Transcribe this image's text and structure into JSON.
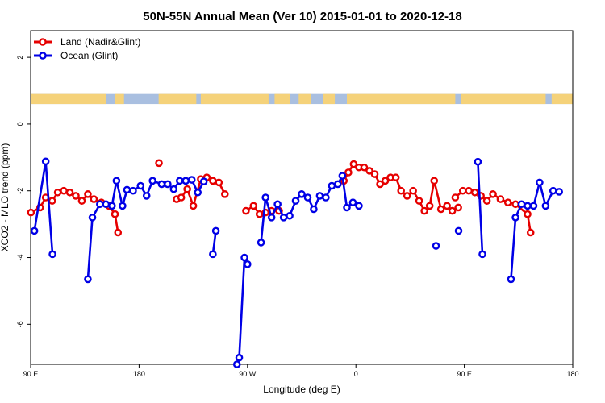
{
  "chart_data": {
    "type": "line",
    "title": "50N-55N Annual Mean (Ver 10)   2015-01-01 to 2020-12-18",
    "xlabel": "Longitude (deg E)",
    "ylabel": "XCO2 - MLO trend (ppm)",
    "xlim": [
      90,
      450
    ],
    "ylim": [
      -7.2,
      2.8
    ],
    "x_ticks": [
      {
        "value": 90,
        "label": "90 E"
      },
      {
        "value": 162,
        "label": "180"
      },
      {
        "value": 234,
        "label": "90 W"
      },
      {
        "value": 306,
        "label": "0"
      },
      {
        "value": 378,
        "label": "90 E"
      },
      {
        "value": 450,
        "label": "180"
      }
    ],
    "y_ticks": [
      {
        "value": 2,
        "label": "2"
      },
      {
        "value": 0,
        "label": "0"
      },
      {
        "value": -2,
        "label": "-2"
      },
      {
        "value": -4,
        "label": "-4"
      },
      {
        "value": -6,
        "label": "-6"
      }
    ],
    "grid": false,
    "legend_position": "top-left",
    "land_ocean_band": {
      "ymin": 0.6,
      "ymax": 0.9,
      "land_color": "#f5d27a",
      "ocean_color": "#a9bfe0"
    },
    "series": [
      {
        "name": "Land (Nadir&Glint)",
        "color": "#e60000",
        "segments": [
          [
            [
              90.2,
              -2.65
            ],
            [
              96.3,
              -2.5
            ],
            [
              100.0,
              -2.2
            ],
            [
              104.3,
              -2.3
            ],
            [
              108.0,
              -2.05
            ],
            [
              112.0,
              -2.0
            ],
            [
              116.0,
              -2.05
            ],
            [
              120.0,
              -2.15
            ],
            [
              124.0,
              -2.3
            ],
            [
              128.0,
              -2.1
            ],
            [
              132.0,
              -2.25
            ],
            [
              137.0,
              -2.35
            ],
            [
              142.0,
              -2.45
            ],
            [
              146.0,
              -2.7
            ],
            [
              148.0,
              -3.25
            ]
          ],
          [
            [
              233.0,
              -2.6
            ],
            [
              238.0,
              -2.45
            ],
            [
              242.0,
              -2.7
            ],
            [
              246.0,
              -2.65
            ],
            [
              250.0,
              -2.6
            ],
            [
              255.0,
              -2.6
            ]
          ],
          [
            [
              187.0,
              -2.25
            ],
            [
              190.0,
              -2.2
            ],
            [
              194.0,
              -1.95
            ],
            [
              198.0,
              -2.45
            ],
            [
              203.0,
              -1.65
            ],
            [
              207.0,
              -1.6
            ],
            [
              211.0,
              -1.7
            ],
            [
              215.0,
              -1.75
            ],
            [
              219.0,
              -2.1
            ]
          ],
          [
            [
              298.0,
              -1.7
            ],
            [
              301.0,
              -1.45
            ],
            [
              304.5,
              -1.2
            ],
            [
              308.0,
              -1.3
            ],
            [
              311.5,
              -1.3
            ],
            [
              315.0,
              -1.4
            ],
            [
              318.5,
              -1.5
            ],
            [
              322.0,
              -1.8
            ],
            [
              325.5,
              -1.7
            ],
            [
              329.0,
              -1.6
            ],
            [
              332.5,
              -1.6
            ],
            [
              336.0,
              -2.0
            ],
            [
              340.0,
              -2.15
            ],
            [
              344.0,
              -2.0
            ],
            [
              348.0,
              -2.3
            ],
            [
              351.5,
              -2.6
            ],
            [
              355.0,
              -2.45
            ],
            [
              358.0,
              -1.7
            ],
            [
              362.5,
              -2.55
            ],
            [
              366.5,
              -2.45
            ],
            [
              370.0,
              -2.6
            ],
            [
              374.0,
              -2.5
            ]
          ],
          [
            [
              372.0,
              -2.2
            ],
            [
              377.0,
              -2.0
            ],
            [
              381.0,
              -2.0
            ],
            [
              385.0,
              -2.05
            ],
            [
              389.0,
              -2.15
            ],
            [
              393.0,
              -2.3
            ],
            [
              397.0,
              -2.1
            ],
            [
              402.0,
              -2.25
            ],
            [
              407.0,
              -2.35
            ],
            [
              412.0,
              -2.4
            ],
            [
              420.0,
              -2.7
            ],
            [
              422.0,
              -3.25
            ]
          ]
        ],
        "isolated": [
          [
            175.2,
            -1.17
          ]
        ]
      },
      {
        "name": "Ocean (Glint)",
        "color": "#0000e6",
        "segments": [
          [
            [
              92.5,
              -3.2
            ],
            [
              100.0,
              -1.12
            ],
            [
              104.5,
              -3.9
            ]
          ],
          [
            [
              128.0,
              -4.65
            ],
            [
              131.0,
              -2.8
            ],
            [
              136.0,
              -2.4
            ],
            [
              140.0,
              -2.4
            ],
            [
              144.0,
              -2.45
            ],
            [
              147.0,
              -1.7
            ],
            [
              151.0,
              -2.45
            ],
            [
              154.0,
              -1.97
            ],
            [
              158.0,
              -2.0
            ],
            [
              163.0,
              -1.85
            ],
            [
              167.0,
              -2.15
            ],
            [
              171.0,
              -1.7
            ],
            [
              177.0,
              -1.8
            ],
            [
              181.0,
              -1.8
            ],
            [
              185.0,
              -1.95
            ],
            [
              189.0,
              -1.7
            ],
            [
              193.0,
              -1.7
            ],
            [
              197.0,
              -1.67
            ],
            [
              201.0,
              -2.05
            ],
            [
              205.0,
              -1.72
            ]
          ],
          [
            [
              211.0,
              -3.9
            ],
            [
              213.0,
              -3.2
            ]
          ],
          [
            [
              227.0,
              -7.2
            ],
            [
              228.5,
              -7.0
            ],
            [
              232.0,
              -4.0
            ],
            [
              234.0,
              -4.2
            ]
          ],
          [
            [
              243.0,
              -3.55
            ],
            [
              246.0,
              -2.2
            ],
            [
              250.0,
              -2.8
            ],
            [
              254.0,
              -2.4
            ],
            [
              258.0,
              -2.8
            ],
            [
              262.0,
              -2.75
            ],
            [
              266.0,
              -2.3
            ],
            [
              270.0,
              -2.1
            ],
            [
              274.0,
              -2.2
            ],
            [
              278.0,
              -2.55
            ],
            [
              282.0,
              -2.15
            ],
            [
              286.0,
              -2.2
            ],
            [
              290.0,
              -1.85
            ],
            [
              294.0,
              -1.8
            ],
            [
              297.0,
              -1.55
            ],
            [
              300.0,
              -2.5
            ],
            [
              304.0,
              -2.35
            ],
            [
              308.0,
              -2.45
            ]
          ],
          [
            [
              387.0,
              -1.13
            ],
            [
              390.0,
              -3.9
            ]
          ],
          [
            [
              409.0,
              -4.65
            ],
            [
              412.0,
              -2.8
            ],
            [
              416.0,
              -2.4
            ],
            [
              420.0,
              -2.45
            ],
            [
              424.0,
              -2.45
            ],
            [
              428.0,
              -1.75
            ],
            [
              432.0,
              -2.45
            ],
            [
              437.0,
              -2.0
            ],
            [
              441.0,
              -2.03
            ]
          ]
        ],
        "isolated": [
          [
            359.2,
            -3.65
          ],
          [
            374.2,
            -3.2
          ]
        ]
      }
    ]
  }
}
